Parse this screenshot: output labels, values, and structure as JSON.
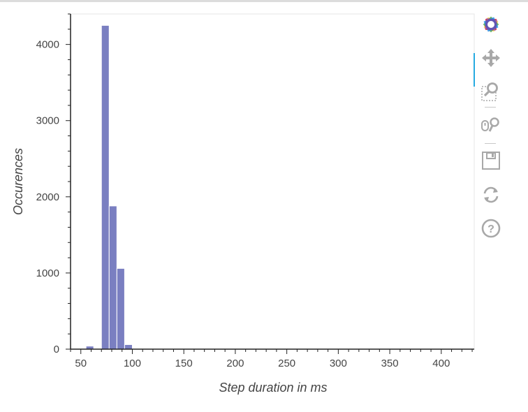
{
  "chart_data": {
    "type": "histogram",
    "xlabel": "Step duration in ms",
    "ylabel": "Occurences",
    "xlim": [
      40,
      432
    ],
    "ylim": [
      0,
      4400
    ],
    "x_ticks": [
      50,
      100,
      150,
      200,
      250,
      300,
      350,
      400
    ],
    "y_ticks": [
      0,
      1000,
      2000,
      3000,
      4000
    ],
    "bin_width": 7.5,
    "bars": [
      {
        "x0": 55,
        "x1": 62.5,
        "value": 40
      },
      {
        "x0": 62.5,
        "x1": 70,
        "value": 5
      },
      {
        "x0": 70,
        "x1": 77.5,
        "value": 4250
      },
      {
        "x0": 77.5,
        "x1": 85,
        "value": 1880
      },
      {
        "x0": 85,
        "x1": 92.5,
        "value": 1060
      },
      {
        "x0": 92.5,
        "x1": 100,
        "value": 60
      }
    ],
    "bar_color": "#7a7fc1",
    "grid": false
  },
  "toolbar": {
    "tools": [
      {
        "name": "bokeh-logo",
        "icon": "bokeh-logo-icon"
      },
      {
        "name": "pan",
        "icon": "pan-icon",
        "active": true
      },
      {
        "name": "box-zoom",
        "icon": "box-zoom-icon"
      },
      {
        "name": "wheel-zoom",
        "icon": "wheel-zoom-icon"
      },
      {
        "name": "save",
        "icon": "save-icon"
      },
      {
        "name": "reset",
        "icon": "reset-icon"
      },
      {
        "name": "help",
        "icon": "help-icon"
      }
    ]
  }
}
